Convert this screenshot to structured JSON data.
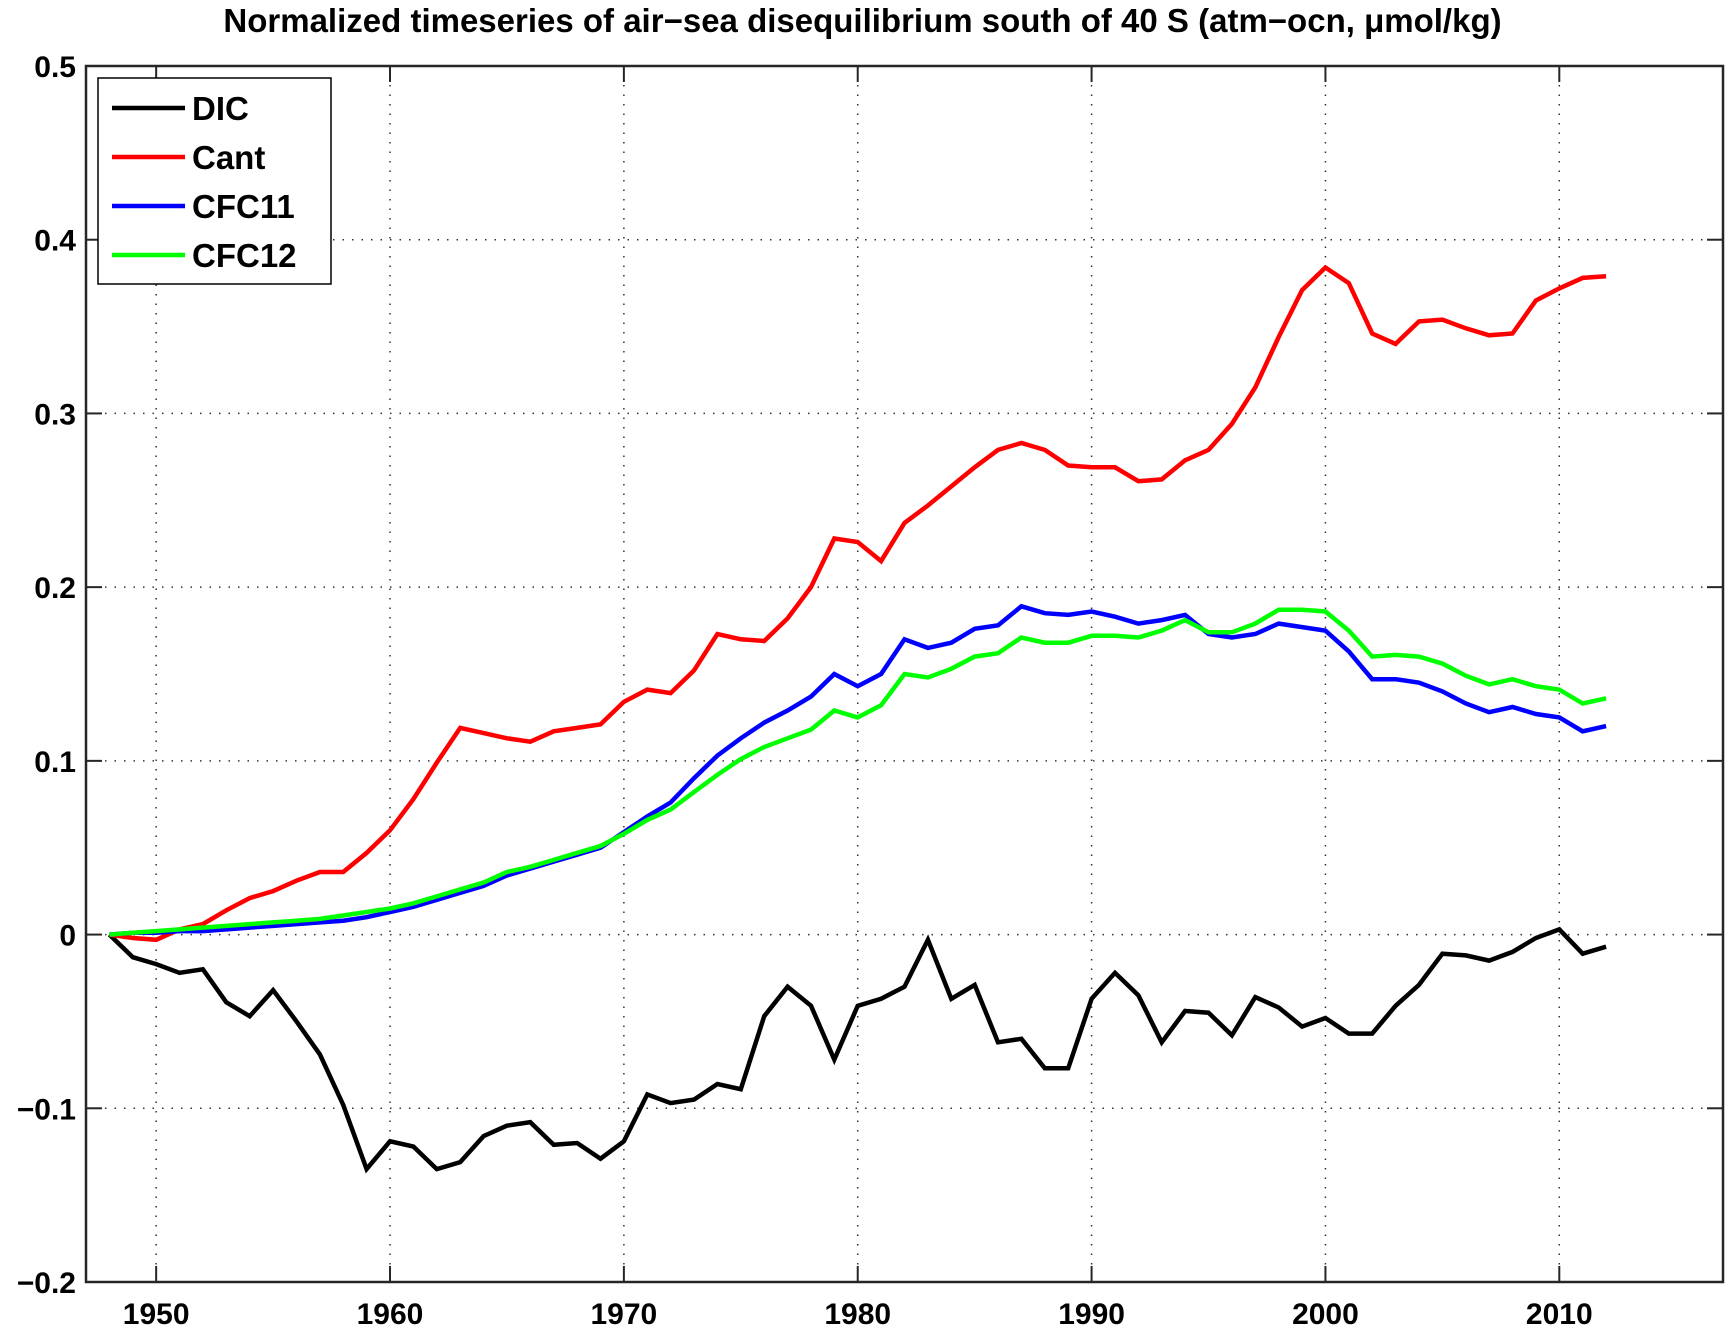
{
  "chart_data": {
    "type": "line",
    "title": "Normalized timeseries of air−sea disequilibrium  south of 40 S (atm−ocn, μmol/kg)",
    "xlabel": "",
    "ylabel": "",
    "xlim": [
      1947,
      2017
    ],
    "ylim": [
      -0.2,
      0.5
    ],
    "xticks": [
      1950,
      1960,
      1970,
      1980,
      1990,
      2000,
      2010
    ],
    "xtick_labels": [
      "1950",
      "1960",
      "1970",
      "1980",
      "1990",
      "2000",
      "2010"
    ],
    "yticks": [
      -0.2,
      -0.1,
      0,
      0.1,
      0.2,
      0.3,
      0.4,
      0.5
    ],
    "ytick_labels": [
      "−0.2",
      "−0.1",
      "0",
      "0.1",
      "0.2",
      "0.3",
      "0.4",
      "0.5"
    ],
    "grid": true,
    "legend_position": "top-left",
    "x": [
      1948,
      1949,
      1950,
      1951,
      1952,
      1953,
      1954,
      1955,
      1956,
      1957,
      1958,
      1959,
      1960,
      1961,
      1962,
      1963,
      1964,
      1965,
      1966,
      1967,
      1968,
      1969,
      1970,
      1971,
      1972,
      1973,
      1974,
      1975,
      1976,
      1977,
      1978,
      1979,
      1980,
      1981,
      1982,
      1983,
      1984,
      1985,
      1986,
      1987,
      1988,
      1989,
      1990,
      1991,
      1992,
      1993,
      1994,
      1995,
      1996,
      1997,
      1998,
      1999,
      2000,
      2001,
      2002,
      2003,
      2004,
      2005,
      2006,
      2007,
      2008,
      2009,
      2010,
      2011,
      2012
    ],
    "series": [
      {
        "name": "DIC",
        "color": "#000000",
        "values": [
          0,
          -0.013,
          -0.017,
          -0.022,
          -0.02,
          -0.039,
          -0.047,
          -0.032,
          -0.05,
          -0.069,
          -0.098,
          -0.135,
          -0.119,
          -0.122,
          -0.135,
          -0.131,
          -0.116,
          -0.11,
          -0.108,
          -0.121,
          -0.12,
          -0.129,
          -0.119,
          -0.092,
          -0.097,
          -0.095,
          -0.086,
          -0.089,
          -0.047,
          -0.03,
          -0.041,
          -0.072,
          -0.041,
          -0.037,
          -0.03,
          -0.003,
          -0.037,
          -0.029,
          -0.062,
          -0.06,
          -0.077,
          -0.077,
          -0.037,
          -0.022,
          -0.035,
          -0.062,
          -0.044,
          -0.045,
          -0.058,
          -0.036,
          -0.042,
          -0.053,
          -0.048,
          -0.057,
          -0.057,
          -0.041,
          -0.029,
          -0.011,
          -0.012,
          -0.015,
          -0.01,
          -0.002,
          0.003,
          -0.011,
          -0.007
        ]
      },
      {
        "name": "Cant",
        "color": "#ff0000",
        "values": [
          0,
          -0.002,
          -0.003,
          0.003,
          0.006,
          0.014,
          0.021,
          0.025,
          0.031,
          0.036,
          0.036,
          0.047,
          0.06,
          0.078,
          0.099,
          0.119,
          0.116,
          0.113,
          0.111,
          0.117,
          0.119,
          0.121,
          0.134,
          0.141,
          0.139,
          0.152,
          0.173,
          0.17,
          0.169,
          0.182,
          0.2,
          0.228,
          0.226,
          0.215,
          0.237,
          0.247,
          0.258,
          0.269,
          0.279,
          0.283,
          0.279,
          0.27,
          0.269,
          0.269,
          0.261,
          0.262,
          0.273,
          0.279,
          0.294,
          0.315,
          0.344,
          0.371,
          0.384,
          0.375,
          0.346,
          0.34,
          0.353,
          0.354,
          0.349,
          0.345,
          0.346,
          0.365,
          0.372,
          0.378,
          0.379
        ]
      },
      {
        "name": "CFC11",
        "color": "#0000ff",
        "values": [
          0,
          0.001,
          0.001,
          0.002,
          0.002,
          0.003,
          0.004,
          0.005,
          0.006,
          0.007,
          0.008,
          0.01,
          0.013,
          0.016,
          0.02,
          0.024,
          0.028,
          0.034,
          0.038,
          0.042,
          0.046,
          0.05,
          0.059,
          0.068,
          0.076,
          0.09,
          0.103,
          0.113,
          0.122,
          0.129,
          0.137,
          0.15,
          0.143,
          0.15,
          0.17,
          0.165,
          0.168,
          0.176,
          0.178,
          0.189,
          0.185,
          0.184,
          0.186,
          0.183,
          0.179,
          0.181,
          0.184,
          0.173,
          0.171,
          0.173,
          0.179,
          0.177,
          0.175,
          0.163,
          0.147,
          0.147,
          0.145,
          0.14,
          0.133,
          0.128,
          0.131,
          0.127,
          0.125,
          0.117,
          0.12
        ]
      },
      {
        "name": "CFC12",
        "color": "#00ff00",
        "values": [
          0,
          0.001,
          0.002,
          0.003,
          0.004,
          0.005,
          0.006,
          0.007,
          0.008,
          0.009,
          0.011,
          0.013,
          0.015,
          0.018,
          0.022,
          0.026,
          0.03,
          0.036,
          0.039,
          0.043,
          0.047,
          0.051,
          0.058,
          0.066,
          0.072,
          0.082,
          0.092,
          0.101,
          0.108,
          0.113,
          0.118,
          0.129,
          0.125,
          0.132,
          0.15,
          0.148,
          0.153,
          0.16,
          0.162,
          0.171,
          0.168,
          0.168,
          0.172,
          0.172,
          0.171,
          0.175,
          0.181,
          0.174,
          0.174,
          0.179,
          0.187,
          0.187,
          0.186,
          0.175,
          0.16,
          0.161,
          0.16,
          0.156,
          0.149,
          0.144,
          0.147,
          0.143,
          0.141,
          0.133,
          0.136
        ]
      }
    ]
  }
}
